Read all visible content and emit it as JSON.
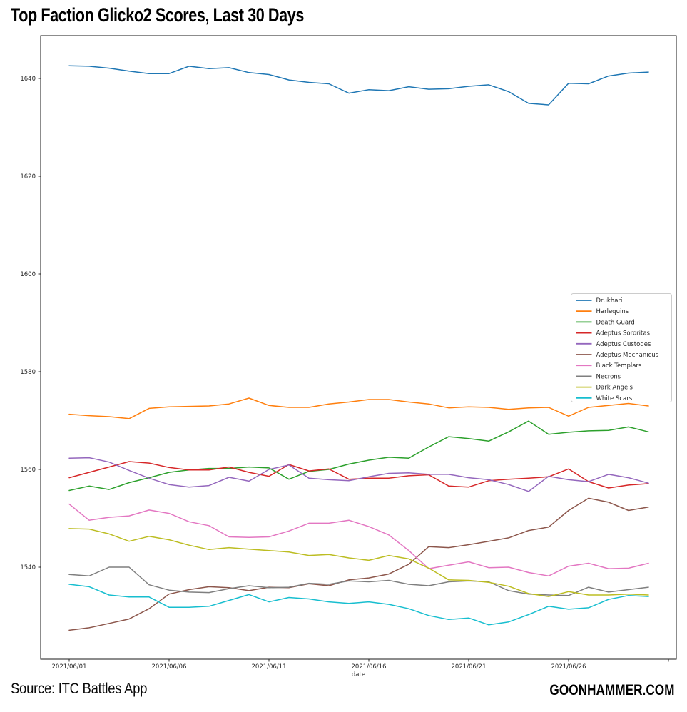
{
  "header": {
    "title": "Top Faction Glicko2 Scores, Last 30 Days"
  },
  "footer": {
    "source": "Source: ITC Battles App",
    "brand": "GOONHAMMER.COM"
  },
  "chart_data": {
    "type": "line",
    "title": "Top Faction Glicko2 Scores, Last 30 Days",
    "xlabel": "date",
    "ylabel": "",
    "grid": false,
    "legend_position": "center right",
    "ylim": [
      1521.2,
      1648.8
    ],
    "y_ticks": [
      1540,
      1560,
      1580,
      1600,
      1620,
      1640
    ],
    "x_tick_days": [
      1,
      6,
      11,
      16,
      21,
      26,
      31
    ],
    "x_tick_labels": [
      "2021/06/01",
      "2021/06/06",
      "2021/06/11",
      "2021/06/16",
      "2021/06/21",
      "2021/06/26",
      ""
    ],
    "dates": [
      "2021/06/01",
      "2021/06/02",
      "2021/06/03",
      "2021/06/04",
      "2021/06/05",
      "2021/06/06",
      "2021/06/07",
      "2021/06/08",
      "2021/06/09",
      "2021/06/10",
      "2021/06/11",
      "2021/06/12",
      "2021/06/13",
      "2021/06/14",
      "2021/06/15",
      "2021/06/16",
      "2021/06/17",
      "2021/06/18",
      "2021/06/19",
      "2021/06/20",
      "2021/06/21",
      "2021/06/22",
      "2021/06/23",
      "2021/06/24",
      "2021/06/25",
      "2021/06/26",
      "2021/06/27",
      "2021/06/28",
      "2021/06/29",
      "2021/06/30"
    ],
    "series": [
      {
        "name": "Drukhari",
        "color": "#1f77b4",
        "values": [
          1642.6,
          1642.5,
          1642.1,
          1641.5,
          1641.0,
          1641.0,
          1642.5,
          1642.0,
          1642.2,
          1641.2,
          1640.8,
          1639.7,
          1639.2,
          1638.9,
          1637.0,
          1637.7,
          1637.5,
          1638.3,
          1637.8,
          1637.9,
          1638.4,
          1638.7,
          1637.3,
          1634.9,
          1634.6,
          1639.0,
          1638.9,
          1640.5,
          1641.1,
          1641.3
        ]
      },
      {
        "name": "Harlequins",
        "color": "#ff7f0e",
        "values": [
          1571.3,
          1571.0,
          1570.8,
          1570.4,
          1572.5,
          1572.8,
          1572.9,
          1573.0,
          1573.4,
          1574.6,
          1573.1,
          1572.7,
          1572.7,
          1573.4,
          1573.8,
          1574.3,
          1574.3,
          1573.8,
          1573.4,
          1572.6,
          1572.8,
          1572.7,
          1572.3,
          1572.6,
          1572.7,
          1570.9,
          1572.7,
          1573.1,
          1573.5,
          1573.0
        ]
      },
      {
        "name": "Death Guard",
        "color": "#2ca02c",
        "values": [
          1555.7,
          1556.6,
          1555.9,
          1557.3,
          1558.3,
          1559.4,
          1559.9,
          1560.2,
          1560.2,
          1560.5,
          1560.3,
          1558.0,
          1559.6,
          1560.0,
          1561.1,
          1561.9,
          1562.5,
          1562.3,
          1564.6,
          1566.7,
          1566.3,
          1565.8,
          1567.7,
          1569.9,
          1567.2,
          1567.6,
          1567.9,
          1568.0,
          1568.7,
          1567.7
        ]
      },
      {
        "name": "Adeptus Sororitas",
        "color": "#d62728",
        "values": [
          1558.3,
          1559.4,
          1560.5,
          1561.6,
          1561.3,
          1560.4,
          1559.9,
          1559.9,
          1560.5,
          1559.4,
          1558.6,
          1561.0,
          1559.7,
          1560.1,
          1558.0,
          1558.2,
          1558.2,
          1558.7,
          1558.9,
          1556.6,
          1556.4,
          1557.7,
          1558.0,
          1558.2,
          1558.5,
          1560.1,
          1557.5,
          1556.2,
          1556.8,
          1557.1
        ]
      },
      {
        "name": "Adeptus Custodes",
        "color": "#9467bd",
        "values": [
          1562.3,
          1562.4,
          1561.5,
          1559.8,
          1558.2,
          1556.9,
          1556.4,
          1556.7,
          1558.4,
          1557.6,
          1560.0,
          1560.9,
          1558.2,
          1557.9,
          1557.7,
          1558.5,
          1559.2,
          1559.3,
          1559.0,
          1559.0,
          1558.3,
          1557.9,
          1556.9,
          1555.5,
          1558.6,
          1557.9,
          1557.5,
          1559.0,
          1558.3,
          1557.2
        ]
      },
      {
        "name": "Adeptus Mechanicus",
        "color": "#8c564b",
        "values": [
          1527.1,
          1527.6,
          1528.5,
          1529.4,
          1531.5,
          1534.5,
          1535.4,
          1536.0,
          1535.8,
          1535.2,
          1535.9,
          1535.8,
          1536.6,
          1536.2,
          1537.4,
          1537.8,
          1538.6,
          1540.6,
          1544.2,
          1544.0,
          1544.6,
          1545.3,
          1546.0,
          1547.5,
          1548.2,
          1551.6,
          1554.1,
          1553.3,
          1551.6,
          1552.3
        ]
      },
      {
        "name": "Black Templars",
        "color": "#e377c2",
        "values": [
          1552.9,
          1549.6,
          1550.2,
          1550.5,
          1551.7,
          1551.0,
          1549.3,
          1548.5,
          1546.2,
          1546.1,
          1546.2,
          1547.4,
          1549.0,
          1549.0,
          1549.6,
          1548.3,
          1546.6,
          1543.4,
          1539.7,
          1540.4,
          1541.1,
          1539.9,
          1540.0,
          1538.9,
          1538.2,
          1540.2,
          1540.8,
          1539.7,
          1539.8,
          1540.8
        ]
      },
      {
        "name": "Necrons",
        "color": "#7f7f7f",
        "values": [
          1538.5,
          1538.2,
          1540.0,
          1540.0,
          1536.4,
          1535.3,
          1534.9,
          1534.8,
          1535.6,
          1536.2,
          1535.8,
          1535.9,
          1536.7,
          1536.5,
          1537.2,
          1537.0,
          1537.3,
          1536.5,
          1536.2,
          1537.0,
          1537.2,
          1537.0,
          1535.2,
          1534.5,
          1534.3,
          1534.2,
          1535.9,
          1534.9,
          1535.4,
          1535.9
        ]
      },
      {
        "name": "Dark Angels",
        "color": "#bcbd22",
        "values": [
          1547.9,
          1547.8,
          1546.8,
          1545.3,
          1546.3,
          1545.6,
          1544.5,
          1543.6,
          1544.0,
          1543.7,
          1543.4,
          1543.1,
          1542.4,
          1542.6,
          1541.9,
          1541.4,
          1542.4,
          1541.7,
          1539.8,
          1537.4,
          1537.3,
          1536.9,
          1536.1,
          1534.6,
          1534.0,
          1535.0,
          1534.3,
          1534.3,
          1534.5,
          1534.3
        ]
      },
      {
        "name": "White Scars",
        "color": "#17becf",
        "values": [
          1536.5,
          1536.0,
          1534.3,
          1533.9,
          1533.9,
          1531.8,
          1531.8,
          1532.0,
          1533.2,
          1534.4,
          1532.9,
          1533.8,
          1533.5,
          1532.9,
          1532.6,
          1532.9,
          1532.4,
          1531.5,
          1530.1,
          1529.3,
          1529.6,
          1528.2,
          1528.8,
          1530.3,
          1532.0,
          1531.4,
          1531.7,
          1533.4,
          1534.2,
          1534.0
        ]
      }
    ]
  }
}
